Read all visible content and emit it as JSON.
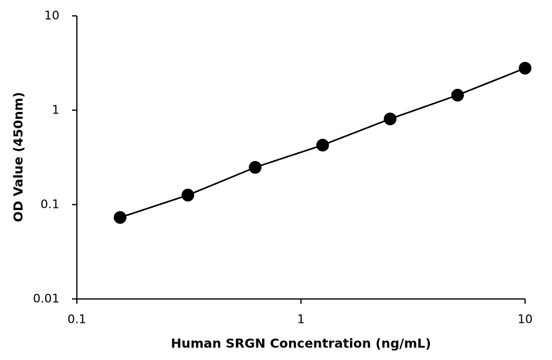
{
  "chart_data": {
    "type": "scatter",
    "x_label": "Human SRGN Concentration (ng/mL)",
    "y_label": "OD Value (450nm)",
    "x": [
      0.156,
      0.313,
      0.625,
      1.25,
      2.5,
      5,
      10
    ],
    "series": [
      {
        "color": "#000000",
        "values": [
          0.073,
          0.126,
          0.248,
          0.427,
          0.809,
          1.445,
          2.79
        ]
      }
    ],
    "xlim": [
      0.1,
      10
    ],
    "ylim": [
      0.01,
      10
    ],
    "xticks": [
      0.1,
      1,
      10
    ],
    "yticks": [
      0.01,
      0.1,
      1,
      10
    ],
    "xscale": "log",
    "yscale": "log",
    "connect_points": true
  }
}
